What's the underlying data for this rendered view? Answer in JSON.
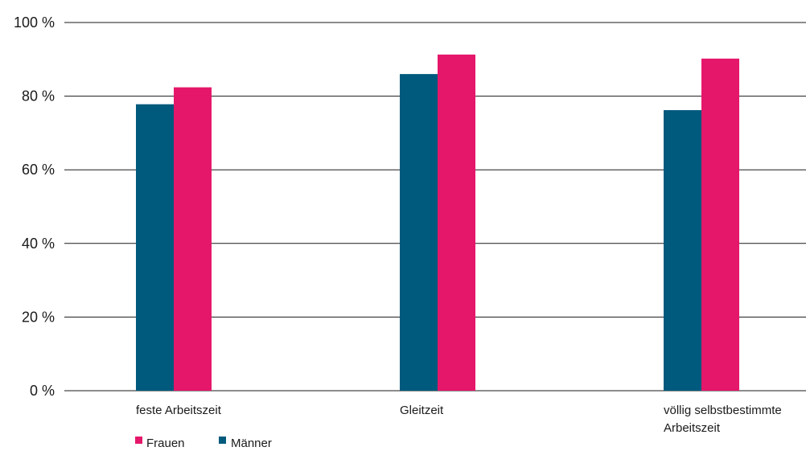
{
  "chart_data": {
    "type": "bar",
    "title": "",
    "xlabel": "",
    "ylabel": "",
    "categories": [
      [
        "feste Arbeitszeit"
      ],
      [
        "Gleitzeit"
      ],
      [
        "völlig selbstbestimmte",
        "Arbeitszeit"
      ]
    ],
    "series": [
      {
        "name": "Männer",
        "color": "#005a7d",
        "values": [
          77.8,
          86.0,
          76.2
        ]
      },
      {
        "name": "Frauen",
        "color": "#e5176a",
        "values": [
          82.4,
          91.3,
          90.2
        ]
      }
    ],
    "ylim": [
      0,
      100
    ],
    "yticks": [
      0,
      20,
      40,
      60,
      80,
      100
    ],
    "ytick_labels": [
      "0 %",
      "20 %",
      "40 %",
      "60 %",
      "80 %",
      "100 %"
    ],
    "grid": true,
    "legend": {
      "placement": "bottom-left",
      "order": [
        "Frauen",
        "Männer"
      ]
    }
  }
}
